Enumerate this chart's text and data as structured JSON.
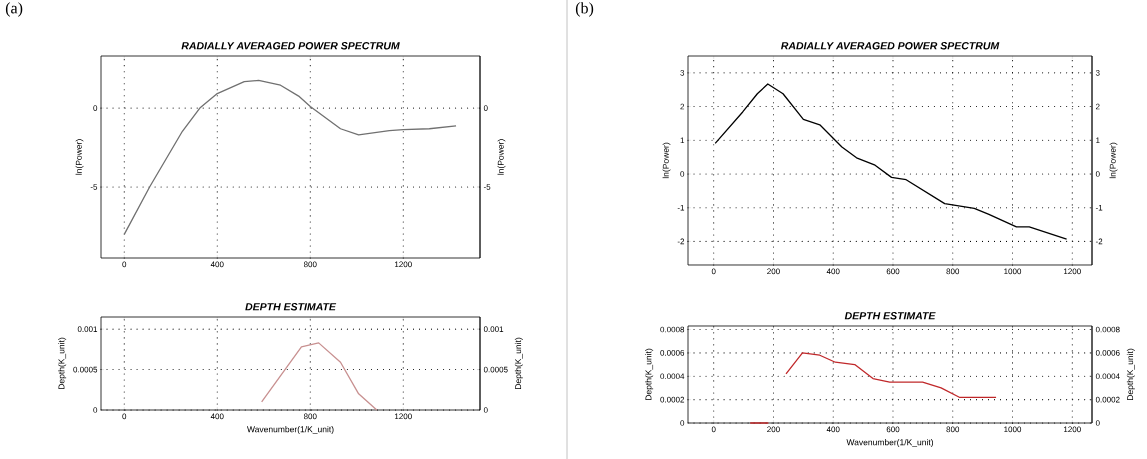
{
  "chart_data": [
    {
      "type": "line",
      "title": "RADIALLY AVERAGED POWER SPECTRUM",
      "ylabel": "ln(Power)",
      "y2label": "ln(Power)",
      "annotations": [
        "(a)"
      ],
      "xlim": [
        -100,
        1530
      ],
      "ylim": [
        -9.5,
        3.3
      ],
      "xticks": [
        0,
        400,
        800,
        1200
      ],
      "yticks": [
        -5,
        0
      ],
      "y2lim": [
        -9.5,
        3.3
      ],
      "y2ticks": [
        -5,
        0
      ],
      "grid": true,
      "series": [
        {
          "color": "#707070",
          "x": [
            0,
            109,
            250,
            325,
            400,
            516,
            578,
            672,
            750,
            800,
            930,
            1008,
            1140,
            1200,
            1312,
            1427
          ],
          "values": [
            -8.0,
            -5,
            -1.47,
            0,
            0.92,
            1.68,
            1.75,
            1.45,
            0.76,
            0.1,
            -1.31,
            -1.7,
            -1.43,
            -1.36,
            -1.31,
            -1.13
          ]
        }
      ]
    },
    {
      "type": "line",
      "title": "DEPTH ESTIMATE",
      "xlabel": "Wavenumber(1/K_unit)",
      "ylabel": "Depth(K_unit)",
      "y2label": "Depth(K_unit)",
      "xlim": [
        -100,
        1530
      ],
      "ylim": [
        0,
        0.00115
      ],
      "xticks": [
        0,
        400,
        800,
        1200
      ],
      "yticks": [
        0,
        0.0005,
        0.001
      ],
      "y2lim": [
        0,
        0.00115
      ],
      "y2ticks": [
        0,
        0.0005,
        0.001
      ],
      "grid": true,
      "series": [
        {
          "color": "#c89090",
          "x": [
            591,
            762,
            836,
            930,
            1008,
            1086
          ],
          "values": [
            0.0001,
            0.00078,
            0.00083,
            0.00059,
            0.0002,
            0
          ]
        }
      ]
    },
    {
      "type": "line",
      "title": "RADIALLY AVERAGED POWER SPECTRUM",
      "ylabel": "ln(Power)",
      "y2label": "ln(Power)",
      "annotations": [
        "(b)"
      ],
      "xlim": [
        -86,
        1266
      ],
      "ylim": [
        -2.7,
        3.5
      ],
      "xticks": [
        0,
        200,
        400,
        600,
        800,
        1000,
        1200
      ],
      "yticks": [
        -2,
        -1,
        0,
        1,
        2,
        3
      ],
      "y2lim": [
        -2.7,
        3.5
      ],
      "y2ticks": [
        -2,
        -1,
        0,
        1,
        2,
        3
      ],
      "grid": true,
      "series": [
        {
          "color": "#000000",
          "x": [
            5,
            97,
            146,
            181,
            232,
            300,
            355,
            429,
            478,
            540,
            595,
            644,
            773,
            872,
            921,
            1013,
            1056,
            1181
          ],
          "values": [
            0.91,
            1.84,
            2.38,
            2.67,
            2.38,
            1.62,
            1.46,
            0.8,
            0.48,
            0.26,
            -0.1,
            -0.17,
            -0.88,
            -1.02,
            -1.2,
            -1.57,
            -1.57,
            -1.93
          ]
        }
      ]
    },
    {
      "type": "line",
      "title": "DEPTH ESTIMATE",
      "xlabel": "Wavenumber(1/K_unit)",
      "ylabel": "Depth(K_unit)",
      "y2label": "Depth(K_unit)",
      "xlim": [
        -86,
        1266
      ],
      "ylim": [
        0,
        0.00083
      ],
      "xticks": [
        0,
        200,
        400,
        600,
        800,
        1000,
        1200
      ],
      "yticks": [
        0,
        0.0002,
        0.0004,
        0.0006,
        0.0008
      ],
      "y2lim": [
        0,
        0.00083
      ],
      "y2ticks": [
        0,
        0.0002,
        0.0004,
        0.0006,
        0.0008
      ],
      "grid": true,
      "series": [
        {
          "color": "#c0282a",
          "x": [
            122,
            183,
            212,
            242,
            297,
            355,
            407,
            472,
            533,
            589,
            699,
            761,
            822,
            945
          ],
          "values": [
            0,
            0,
            null,
            0.00042,
            0.0006,
            0.00058,
            0.00052,
            0.0005,
            0.00038,
            0.00035,
            0.00035,
            0.0003,
            0.00022,
            0.00022
          ]
        }
      ]
    }
  ]
}
